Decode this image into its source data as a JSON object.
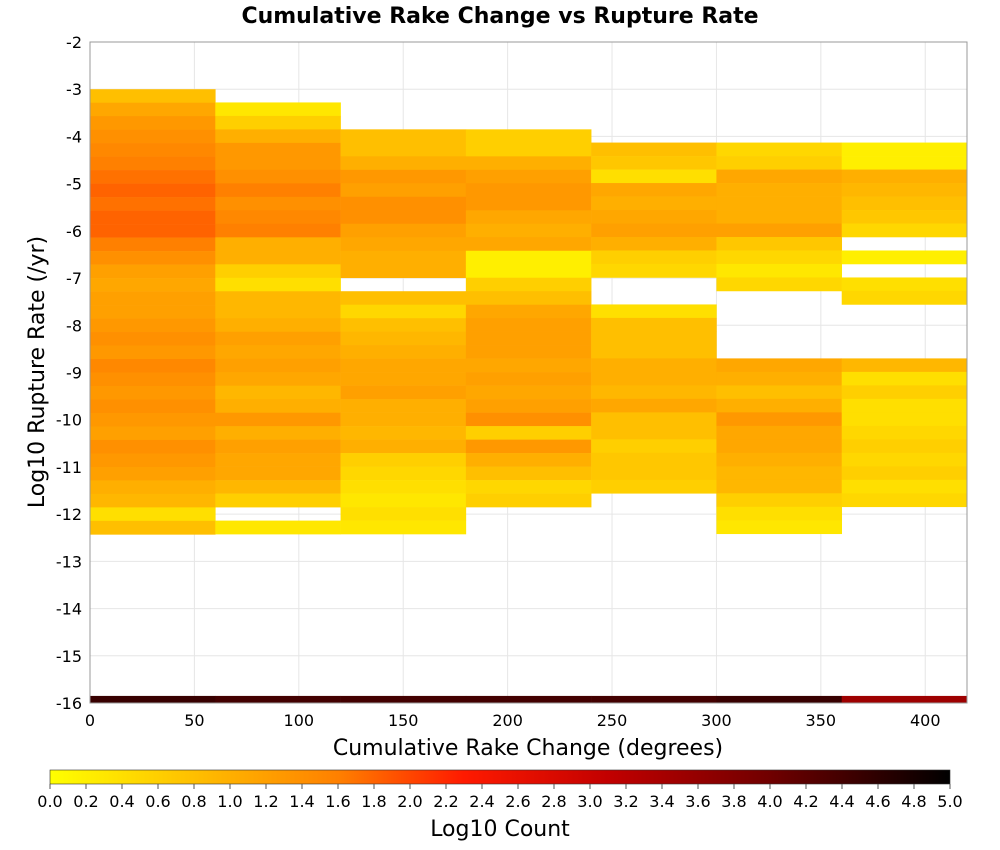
{
  "chart_data": {
    "type": "heatmap",
    "title": "Cumulative Rake Change vs Rupture Rate",
    "xlabel": "Cumulative Rake Change (degrees)",
    "ylabel": "Log10 Rupture Rate (/yr)",
    "xlim": [
      0,
      420
    ],
    "ylim": [
      -16,
      -2
    ],
    "x_ticks": [
      "0",
      "50",
      "100",
      "150",
      "200",
      "250",
      "300",
      "350",
      "400"
    ],
    "y_ticks": [
      "-2",
      "-3",
      "-4",
      "-5",
      "-6",
      "-7",
      "-8",
      "-9",
      "-10",
      "-11",
      "-12",
      "-13",
      "-14",
      "-15",
      "-16"
    ],
    "grid": true,
    "x_bin_width": 60,
    "y_bin_height": 0.2857,
    "x_bins": [
      0,
      60,
      120,
      180,
      240,
      300,
      360
    ],
    "colorbar": {
      "label": "Log10 Count",
      "min": 0.0,
      "max": 5.0,
      "ticks": [
        "0.0",
        "0.2",
        "0.4",
        "0.6",
        "0.8",
        "1.0",
        "1.2",
        "1.4",
        "1.6",
        "1.8",
        "2.0",
        "2.2",
        "2.4",
        "2.6",
        "2.8",
        "3.0",
        "3.2",
        "3.4",
        "3.6",
        "3.8",
        "4.0",
        "4.2",
        "4.4",
        "4.6",
        "4.8",
        "5.0"
      ]
    },
    "columns": [
      {
        "x": 0,
        "y_top": -3.0,
        "values": [
          0.8,
          1.1,
          1.3,
          1.4,
          1.5,
          1.6,
          1.7,
          1.8,
          1.7,
          1.8,
          1.8,
          1.6,
          1.4,
          1.2,
          1.1,
          1.2,
          1.2,
          1.3,
          1.4,
          1.3,
          1.5,
          1.4,
          1.3,
          1.4,
          1.3,
          1.2,
          1.4,
          1.3,
          1.2,
          1.0,
          0.9,
          0.4,
          0.8
        ],
        "bottom_val": 4.5
      },
      {
        "x": 60,
        "y_top": -3.28,
        "values": [
          0.3,
          0.6,
          1.0,
          1.3,
          1.3,
          1.4,
          1.6,
          1.4,
          1.5,
          1.6,
          1.0,
          1.0,
          0.6,
          0.4,
          0.9,
          0.9,
          1.0,
          1.2,
          1.1,
          1.2,
          1.1,
          0.9,
          1.0,
          1.3,
          1.0,
          1.2,
          1.1,
          1.1,
          0.9,
          0.6,
          null,
          0.3
        ],
        "bottom_val": 4.4
      },
      {
        "x": 120,
        "y_top": -3.85,
        "values": [
          0.8,
          0.8,
          1.0,
          1.3,
          1.2,
          1.4,
          1.4,
          1.2,
          1.1,
          1.0,
          1.0,
          null,
          0.8,
          0.5,
          0.8,
          0.9,
          1.0,
          1.1,
          1.1,
          1.2,
          1.0,
          1.0,
          0.9,
          1.0,
          0.6,
          0.5,
          0.4,
          0.3,
          0.4,
          0.3
        ],
        "bottom_val": 4.4
      },
      {
        "x": 180,
        "y_top": -3.85,
        "values": [
          0.6,
          0.6,
          1.0,
          1.2,
          1.3,
          1.3,
          1.1,
          1.0,
          1.1,
          0.2,
          0.2,
          0.6,
          0.8,
          1.1,
          1.2,
          1.2,
          1.2,
          1.1,
          1.2,
          1.1,
          1.2,
          1.4,
          0.6,
          1.3,
          1.0,
          0.8,
          0.5,
          0.6
        ],
        "bottom_val": 4.4
      },
      {
        "x": 240,
        "y_top": -4.13,
        "values": [
          0.8,
          0.7,
          0.4,
          1.1,
          1.0,
          1.1,
          1.2,
          1.0,
          0.6,
          0.5,
          null,
          null,
          0.4,
          0.8,
          0.8,
          0.8,
          1.0,
          1.0,
          0.9,
          1.1,
          0.8,
          0.8,
          0.6,
          0.7,
          0.7,
          0.6
        ],
        "bottom_val": 4.4
      },
      {
        "x": 300,
        "y_top": -4.13,
        "values": [
          0.5,
          0.6,
          1.1,
          1.0,
          1.0,
          1.0,
          1.2,
          0.7,
          0.5,
          0.3,
          0.5,
          null,
          null,
          null,
          null,
          null,
          1.1,
          1.0,
          0.8,
          1.0,
          1.3,
          1.1,
          1.1,
          1.0,
          0.9,
          0.9,
          0.6,
          0.4,
          0.3
        ],
        "bottom_val": 4.5
      },
      {
        "x": 360,
        "y_top": -4.13,
        "values": [
          0.2,
          0.2,
          1.0,
          0.9,
          0.8,
          0.7,
          0.5,
          null,
          0.2,
          null,
          0.4,
          0.5,
          null,
          null,
          null,
          null,
          0.9,
          0.4,
          0.6,
          0.4,
          0.4,
          0.5,
          0.6,
          0.5,
          0.6,
          0.4,
          0.5
        ],
        "bottom_val": 3.5
      }
    ]
  }
}
